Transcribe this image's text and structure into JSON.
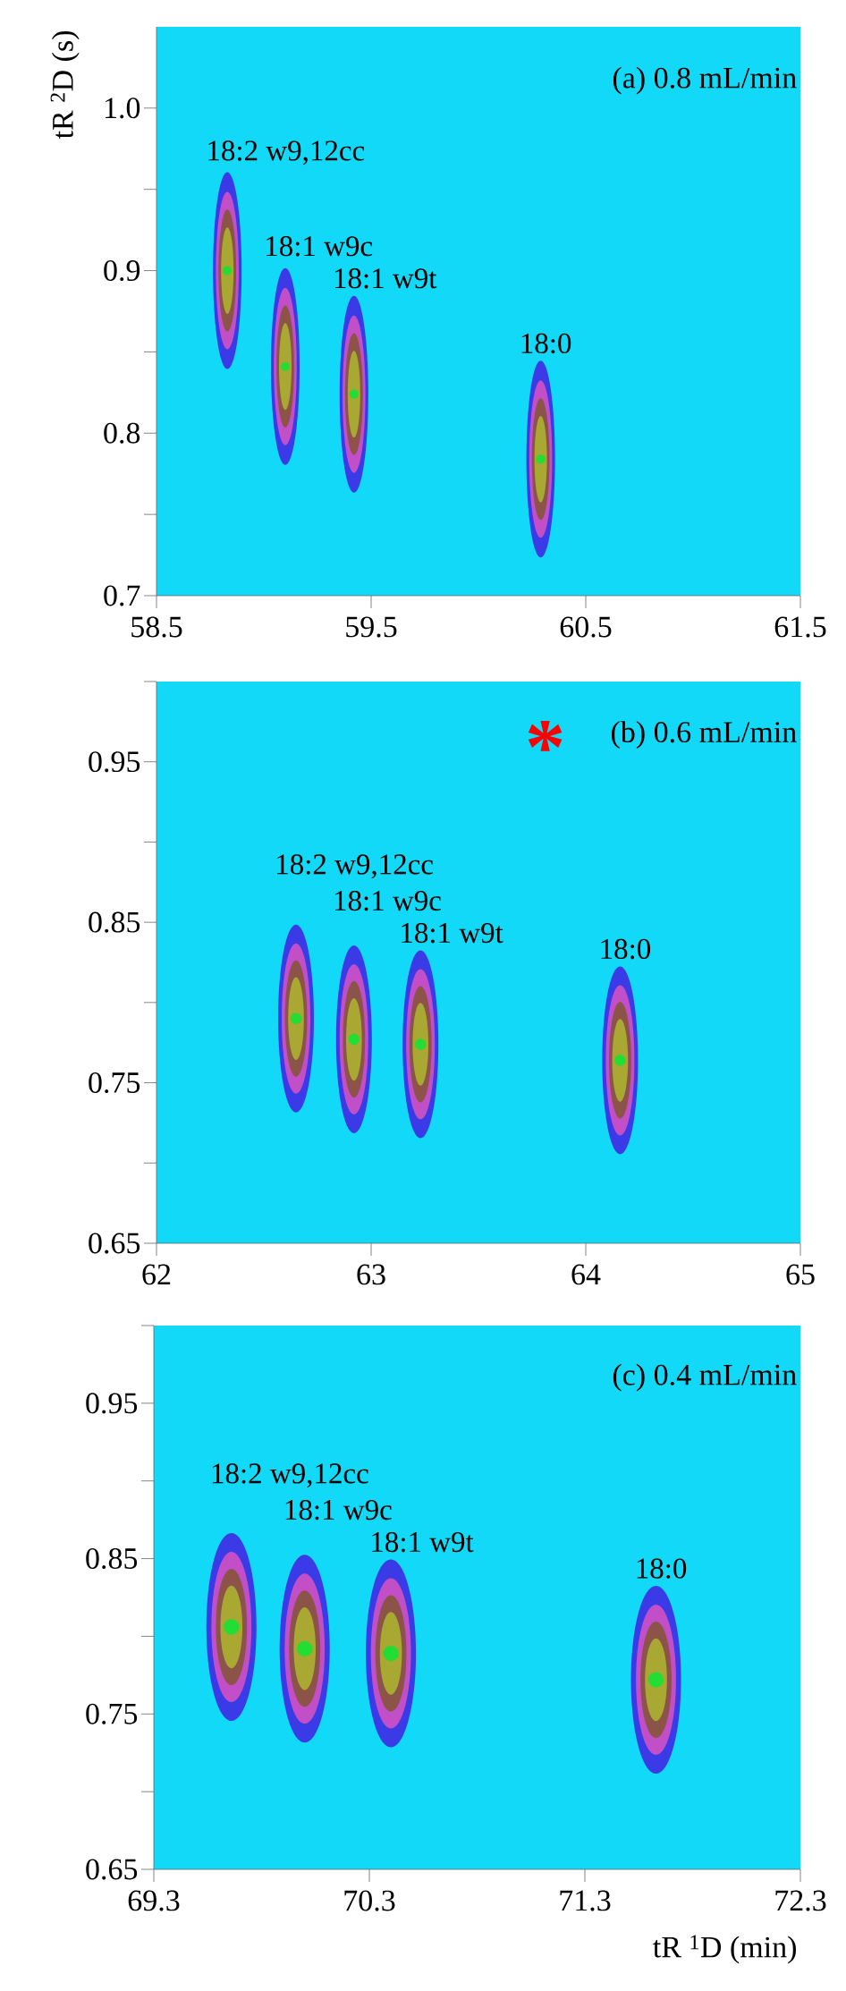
{
  "chart_data": [
    {
      "type": "scatter",
      "ylabel": "tR $^{2}$D (s)",
      "marker": "circle",
      "series": [
        {
          "name": "18:2 w9,12cc",
          "color": "#22dd33",
          "x": [
            58.83
          ],
          "values": [
            0.9
          ]
        },
        {
          "name": "18:1 w9c",
          "color": "#22dd33",
          "x": [
            59.1
          ],
          "values": [
            0.841
          ]
        },
        {
          "name": "18:1 w9t",
          "color": "#22dd33",
          "x": [
            59.42
          ],
          "values": [
            0.824
          ]
        },
        {
          "name": "18:0",
          "color": "#22dd33",
          "x": [
            60.29
          ],
          "values": [
            0.784
          ]
        }
      ],
      "xlim": [
        58.5,
        61.5
      ],
      "xticks": [
        58.5,
        59.5,
        60.5,
        61.5
      ],
      "ylim": [
        0.7,
        1.05
      ],
      "yticks": [
        {
          "value": 0.7,
          "label": "0.7"
        },
        {
          "value": 0.75,
          "label": null
        },
        {
          "value": 0.8,
          "label": "0.8"
        },
        {
          "value": 0.85,
          "label": null
        },
        {
          "value": 0.9,
          "label": "0.9"
        },
        {
          "value": 0.95,
          "label": null
        },
        {
          "value": 1.0,
          "label": "1.0"
        }
      ],
      "annotations": [
        "(a) 0.8 mL/min"
      ]
    },
    {
      "type": "scatter",
      "marker": "circle",
      "series": [
        {
          "name": "18:2 w9,12cc",
          "color": "#22dd33",
          "x": [
            62.65
          ],
          "values": [
            0.79
          ]
        },
        {
          "name": "18:1 w9c",
          "color": "#22dd33",
          "x": [
            62.92
          ],
          "values": [
            0.777
          ]
        },
        {
          "name": "18:1 w9t",
          "color": "#22dd33",
          "x": [
            63.23
          ],
          "values": [
            0.774
          ]
        },
        {
          "name": "18:0",
          "color": "#22dd33",
          "x": [
            64.16
          ],
          "values": [
            0.764
          ]
        }
      ],
      "xlim": [
        62,
        65
      ],
      "xticks": [
        62,
        63,
        64,
        65
      ],
      "ylim": [
        0.65,
        1.0
      ],
      "yticks": [
        0.65,
        {
          "value": 0.7,
          "label": null
        },
        0.75,
        {
          "value": 0.8,
          "label": null
        },
        0.85,
        {
          "value": 0.9,
          "label": null
        },
        0.95,
        {
          "value": 1.0,
          "label": null
        }
      ],
      "annotations": [
        "(b) 0.6 mL/min",
        "*"
      ]
    },
    {
      "type": "scatter",
      "xlabel": "tR $^{1}$D (min)",
      "marker": "circle",
      "series": [
        {
          "name": "18:2 w9,12cc",
          "color": "#22dd33",
          "x": [
            69.66
          ],
          "values": [
            0.806
          ]
        },
        {
          "name": "18:1 w9c",
          "color": "#22dd33",
          "x": [
            70.0
          ],
          "values": [
            0.792
          ]
        },
        {
          "name": "18:1 w9t",
          "color": "#22dd33",
          "x": [
            70.4
          ],
          "values": [
            0.789
          ]
        },
        {
          "name": "18:0",
          "color": "#22dd33",
          "x": [
            71.63
          ],
          "values": [
            0.772
          ]
        }
      ],
      "xlim": [
        69.3,
        72.3
      ],
      "xticks": [
        69.3,
        70.3,
        71.3,
        72.3
      ],
      "ylim": [
        0.65,
        1.0
      ],
      "yticks": [
        0.65,
        {
          "value": 0.7,
          "label": null
        },
        0.75,
        {
          "value": 0.8,
          "label": null
        },
        0.85,
        {
          "value": 0.9,
          "label": null
        },
        0.95,
        {
          "value": 1.0,
          "label": null
        }
      ],
      "annotations": [
        "(c) 0.4 mL/min"
      ]
    }
  ]
}
